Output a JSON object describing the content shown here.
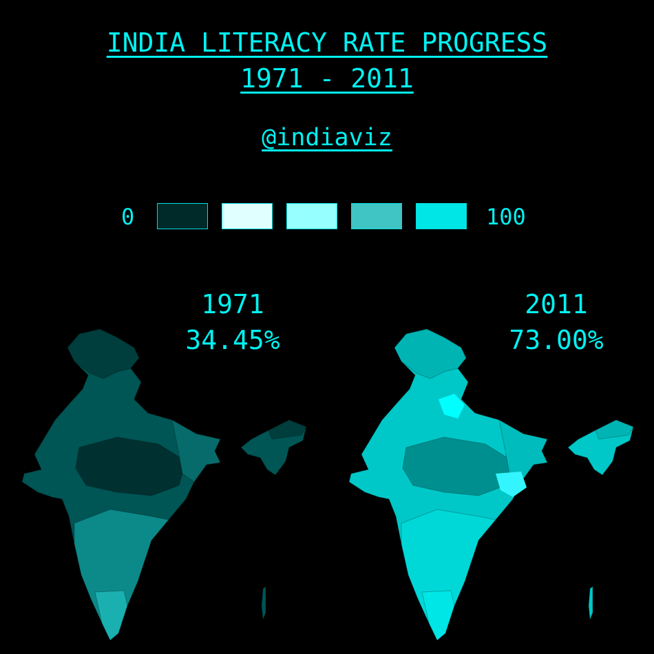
{
  "title": {
    "line1": "INDIA LITERACY RATE PROGRESS",
    "line2": "1971 - 2011"
  },
  "handle": "@indiaviz",
  "legend": {
    "min_label": "0",
    "max_label": "100",
    "swatches": [
      "#002a2a",
      "#e0ffff",
      "#96ffff",
      "#40c4c4",
      "#00e5e5"
    ]
  },
  "maps": [
    {
      "year": "1971",
      "rate": "34.45%",
      "colors": {
        "base": "#005555",
        "north": "#003d3d",
        "south": "#0c8a8a",
        "tip": "#1ab0b0",
        "east": "#076b6b",
        "dark": "#003030"
      }
    },
    {
      "year": "2011",
      "rate": "73.00%",
      "colors": {
        "base": "#00c8c8",
        "north": "#00b4b4",
        "south": "#00d8d8",
        "tip": "#00e6e6",
        "east": "#00bcbc",
        "dark": "#008f8f",
        "highlight": "#00ffff",
        "highlight2": "#33f5ff"
      }
    }
  ]
}
